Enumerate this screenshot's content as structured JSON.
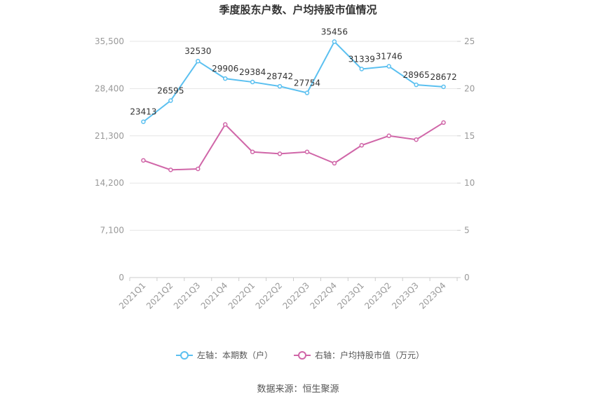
{
  "title": "季度股东户数、户均持股市值情况",
  "source": "数据来源：恒生聚源",
  "chart_data": {
    "type": "line",
    "categories": [
      "2021Q1",
      "2021Q2",
      "2021Q3",
      "2021Q4",
      "2022Q1",
      "2022Q2",
      "2022Q3",
      "2022Q4",
      "2023Q1",
      "2023Q2",
      "2023Q3",
      "2023Q4"
    ],
    "y_left": {
      "min": 0,
      "max": 35500,
      "ticks": [
        0,
        7100,
        14200,
        21300,
        28400,
        35500
      ],
      "tick_labels": [
        "0",
        "7,100",
        "14,200",
        "21,300",
        "28,400",
        "35,500"
      ]
    },
    "y_right": {
      "min": 0,
      "max": 25,
      "ticks": [
        0,
        5,
        10,
        15,
        20,
        25
      ],
      "tick_labels": [
        "0",
        "5",
        "10",
        "15",
        "20",
        "25"
      ]
    },
    "series": [
      {
        "name": "左轴：本期数（户）",
        "axis": "left",
        "color": "#5bc0f0",
        "values": [
          23413,
          26595,
          32530,
          29906,
          29384,
          28742,
          27754,
          35456,
          31339,
          31746,
          28965,
          28672
        ],
        "labels": [
          "23413",
          "26595",
          "32530",
          "29906",
          "29384",
          "28742",
          "27754",
          "35456",
          "31339",
          "31746",
          "28965",
          "28672"
        ]
      },
      {
        "name": "右轴：户均持股市值（万元）",
        "axis": "right",
        "color": "#d066a8",
        "values": [
          12.4,
          11.4,
          11.5,
          16.2,
          13.3,
          13.1,
          13.3,
          12.1,
          14.0,
          15.0,
          14.6,
          16.4
        ]
      }
    ],
    "legend_position": "bottom",
    "grid": true
  }
}
